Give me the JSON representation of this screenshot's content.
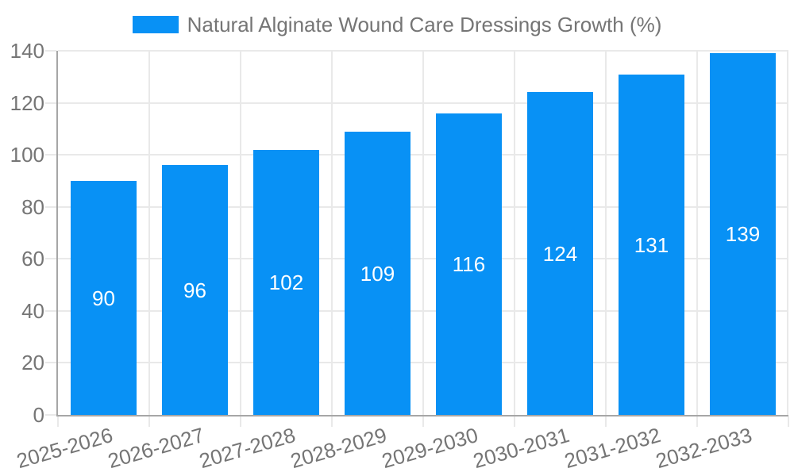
{
  "chart_data": {
    "type": "bar",
    "title": "",
    "legend": {
      "label": "Natural Alginate Wound Care Dressings Growth (%)",
      "position": "top-center"
    },
    "categories": [
      "2025-2026",
      "2026-2027",
      "2027-2028",
      "2028-2029",
      "2029-2030",
      "2030-2031",
      "2031-2032",
      "2032-2033"
    ],
    "values": [
      90,
      96,
      102,
      109,
      116,
      124,
      131,
      139
    ],
    "xlabel": "",
    "ylabel": "",
    "ylim": [
      0,
      140
    ],
    "yticks": [
      0,
      20,
      40,
      60,
      80,
      100,
      120,
      140
    ],
    "grid": true,
    "x_label_rotation_deg": -16,
    "bar_labels_inside": true,
    "colors": {
      "bar": "#0891f5",
      "bar_value_text": "#ffffff",
      "tick_text": "#757575",
      "legend_text": "#757575",
      "gridline": "#e9e9e9",
      "axis_line": "#a6a6a6",
      "background": "#ffffff"
    }
  }
}
